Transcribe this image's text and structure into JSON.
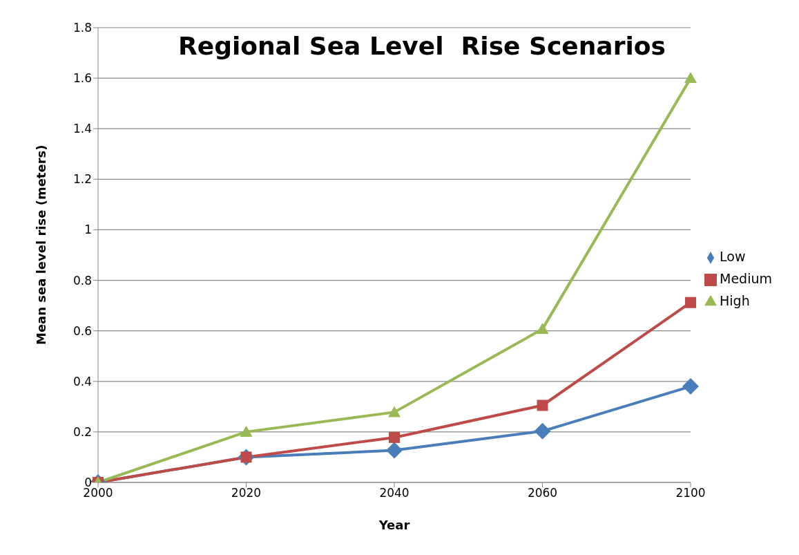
{
  "chart_data": {
    "type": "line",
    "title": "Regional Sea Level  Rise Scenarios",
    "xlabel": "Year",
    "ylabel": "Mean sea level rise (meters)",
    "categories": [
      "2000",
      "2020",
      "2040",
      "2060",
      "2100"
    ],
    "series": [
      {
        "name": "Low",
        "color": "#4a7ebb",
        "marker": "diamond",
        "values": [
          0,
          0.1,
          0.127,
          0.203,
          0.38
        ]
      },
      {
        "name": "Medium",
        "color": "#be4b48",
        "marker": "square",
        "values": [
          0,
          0.1,
          0.178,
          0.305,
          0.712
        ]
      },
      {
        "name": "High",
        "color": "#98b954",
        "marker": "triangle",
        "values": [
          0,
          0.2,
          0.278,
          0.607,
          1.6
        ]
      }
    ],
    "ylim": [
      0,
      1.8
    ],
    "yticks": [
      0,
      0.2,
      0.4,
      0.6,
      0.8,
      1,
      1.2,
      1.4,
      1.6,
      1.8
    ],
    "grid": "y",
    "legend": "right",
    "line_style": "solid"
  }
}
